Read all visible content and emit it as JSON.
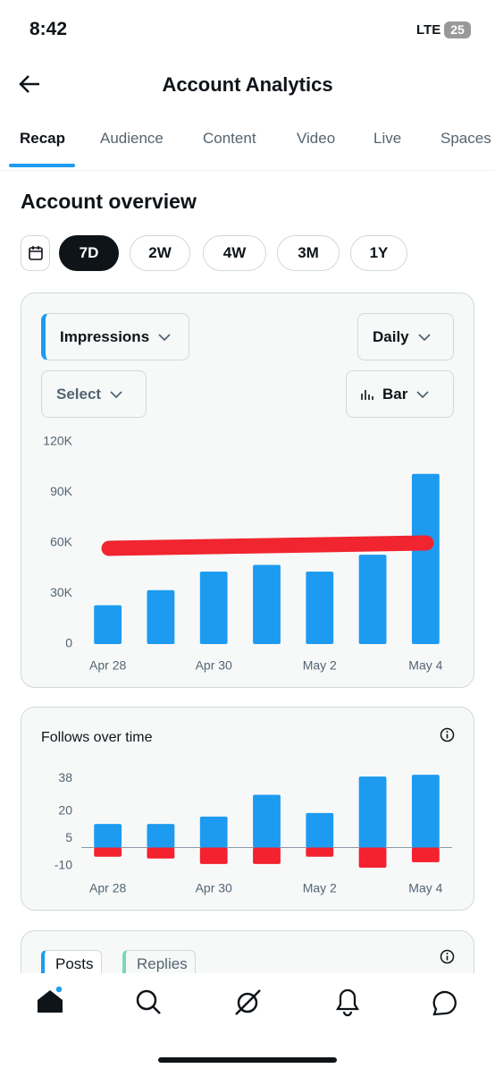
{
  "status_bar": {
    "time": "8:42",
    "network": "LTE",
    "battery": "25"
  },
  "header": {
    "title": "Account Analytics"
  },
  "tabs": [
    "Recap",
    "Audience",
    "Content",
    "Video",
    "Live",
    "Spaces"
  ],
  "section_title": "Account overview",
  "ranges": [
    "7D",
    "2W",
    "4W",
    "3M",
    "1Y"
  ],
  "impressions_card": {
    "metric": "Impressions",
    "interval": "Daily",
    "compare": "Select",
    "chart_style": "Bar",
    "chart_data": {
      "type": "bar",
      "categories": [
        "Apr 28",
        null,
        "Apr 30",
        null,
        "May 2",
        null,
        "May 4"
      ],
      "values": [
        23000,
        32000,
        43000,
        47000,
        43000,
        53000,
        101000
      ],
      "color": "#1d9bf0",
      "ylim": [
        0,
        120000
      ],
      "yticks": [
        0,
        {
          "value": 30000,
          "label": "30K"
        },
        {
          "value": 60000,
          "label": "60K"
        },
        {
          "value": 90000,
          "label": "90K"
        },
        {
          "value": 120000,
          "label": "120K"
        }
      ]
    }
  },
  "follows_card": {
    "title": "Follows over time",
    "chart_data": {
      "type": "bar",
      "categories": [
        "Apr 28",
        null,
        "Apr 30",
        null,
        "May 2",
        null,
        "May 4"
      ],
      "series": [
        {
          "color": "#1d9bf0",
          "values": [
            13,
            13,
            17,
            29,
            19,
            39,
            40
          ]
        },
        {
          "color": "#f4212e",
          "values": [
            -5,
            -6,
            -9,
            -9,
            -5,
            -11,
            -8
          ]
        }
      ],
      "ylim": [
        -12,
        42
      ],
      "yticks": [
        -10,
        5,
        20,
        38
      ]
    }
  },
  "posts_card": {
    "tabs": [
      "Posts",
      "Replies"
    ]
  }
}
